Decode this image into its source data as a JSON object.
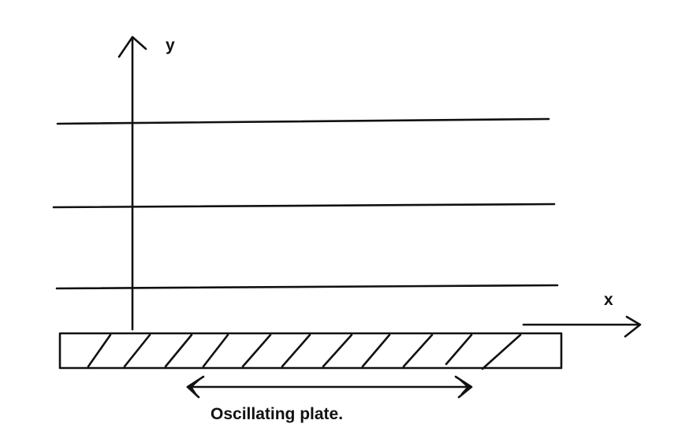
{
  "axes": {
    "y_label": "y",
    "x_label": "x"
  },
  "plate": {
    "caption": "Oscillating plate."
  },
  "colors": {
    "stroke": "#111111",
    "background": "#ffffff"
  }
}
